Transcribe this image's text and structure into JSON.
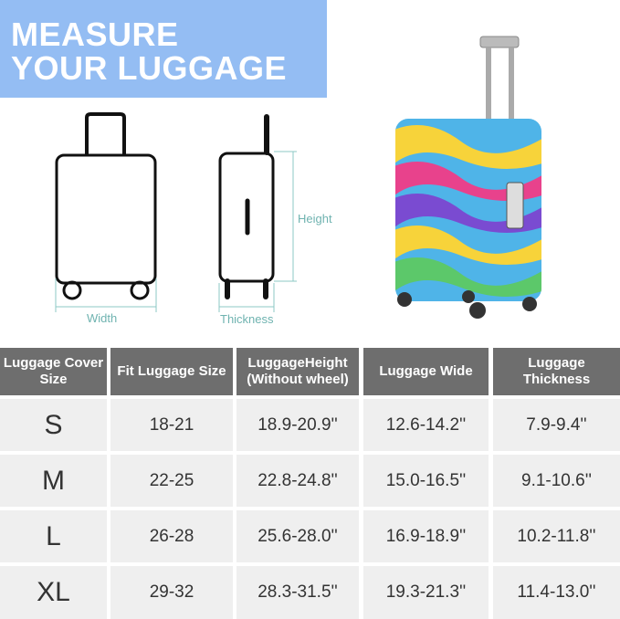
{
  "banner": {
    "line1": "MEASURE",
    "line2": "YOUR LUGGAGE",
    "color": "#94bdf3"
  },
  "diagram": {
    "width_label": "Width",
    "thickness_label": "Thickness",
    "height_label": "Height"
  },
  "table": {
    "headers": [
      "Luggage Cover Size",
      "Fit Luggage Size",
      "LuggageHeight (Without wheel)",
      "Luggage Wide",
      "Luggage Thickness"
    ],
    "rows": [
      [
        "S",
        "18-21",
        "18.9-20.9''",
        "12.6-14.2''",
        "7.9-9.4''"
      ],
      [
        "M",
        "22-25",
        "22.8-24.8''",
        "15.0-16.5''",
        "9.1-10.6''"
      ],
      [
        "L",
        "26-28",
        "25.6-28.0''",
        "16.9-18.9''",
        "10.2-11.8''"
      ],
      [
        "XL",
        "29-32",
        "28.3-31.5''",
        "19.3-21.3''",
        "11.4-13.0''"
      ]
    ]
  }
}
